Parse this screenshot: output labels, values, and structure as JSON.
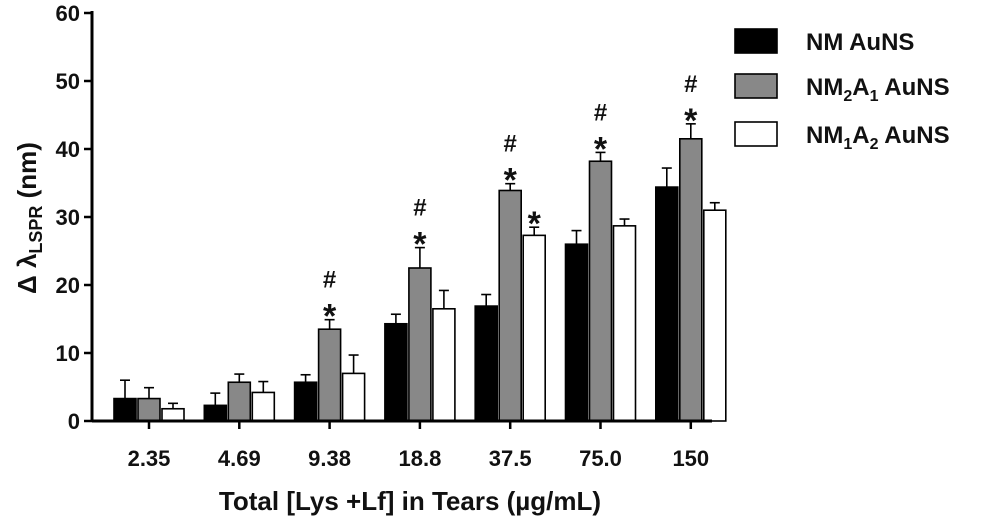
{
  "chart_data": {
    "type": "bar",
    "categories": [
      "2.35",
      "4.69",
      "9.38",
      "18.8",
      "37.5",
      "75.0",
      "150"
    ],
    "xlabel": "Total [Lys +Lf] in Tears  (µg/mL)",
    "ylabel_prefix": "Δ λ",
    "ylabel_sub": "LSPR",
    "ylabel_suffix": " (nm)",
    "ylim": [
      0,
      60
    ],
    "yticks": [
      "0",
      "10",
      "20",
      "30",
      "40",
      "50",
      "60"
    ],
    "series": [
      {
        "name": "NM AuNS",
        "legend": {
          "base": "NM AuNS"
        },
        "color": "#000000",
        "values": [
          3.3,
          2.3,
          5.7,
          14.3,
          16.9,
          26.0,
          34.4
        ],
        "errors": [
          2.7,
          1.8,
          1.1,
          1.4,
          1.7,
          2.0,
          2.8
        ],
        "sig": [
          [],
          [],
          [],
          [],
          [],
          [],
          []
        ]
      },
      {
        "name": "NM2A1 AuNS",
        "legend": {
          "base": "NM",
          "sub1": "2",
          "mid": "A",
          "sub2": "1",
          "tail": " AuNS"
        },
        "color": "#888888",
        "values": [
          3.3,
          5.7,
          13.5,
          22.5,
          33.9,
          38.2,
          41.5
        ],
        "errors": [
          1.6,
          1.2,
          1.4,
          3.0,
          1.0,
          1.3,
          2.2
        ],
        "sig": [
          [],
          [],
          [
            "#",
            "*"
          ],
          [
            "#",
            "*"
          ],
          [
            "#",
            "*"
          ],
          [
            "#",
            "*"
          ],
          [
            "#",
            "*"
          ]
        ]
      },
      {
        "name": "NM1A2 AuNS",
        "legend": {
          "base": "NM",
          "sub1": "1",
          "mid": "A",
          "sub2": "2",
          "tail": " AuNS"
        },
        "color": "#ffffff",
        "values": [
          1.8,
          4.2,
          7.0,
          16.5,
          27.3,
          28.7,
          31.0
        ],
        "errors": [
          0.8,
          1.6,
          2.7,
          2.7,
          1.2,
          1.0,
          1.1
        ],
        "sig": [
          [],
          [],
          [],
          [],
          [
            "*"
          ],
          [],
          []
        ]
      }
    ]
  }
}
